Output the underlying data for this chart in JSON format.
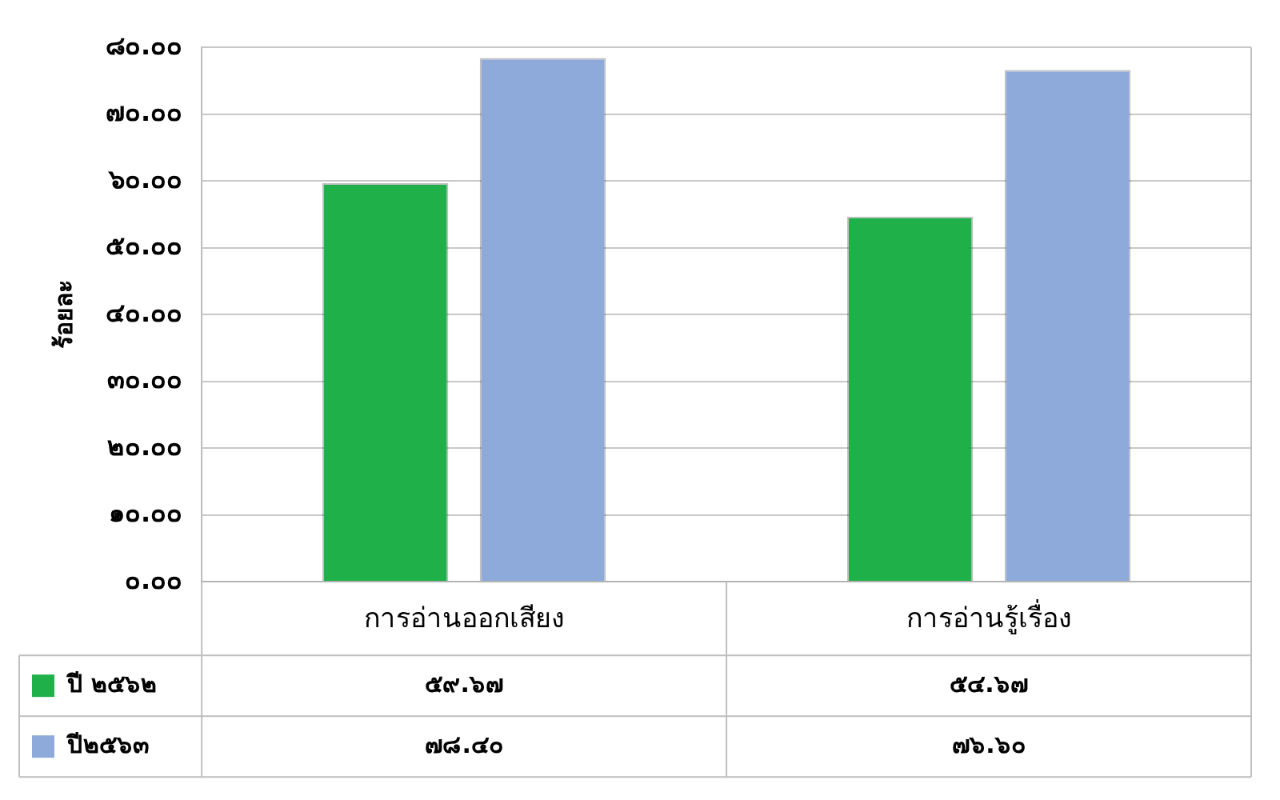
{
  "chart_data": {
    "type": "bar",
    "ylabel": "ร้อยละ",
    "categories": [
      "การอ่านออกเสียง",
      "การอ่านรู้เรื่อง"
    ],
    "series": [
      {
        "name": "ปี ๒๕๖๒",
        "color": "#1fb04a",
        "values": [
          59.67,
          54.67
        ],
        "value_labels": [
          "๕๙.๖๗",
          "๕๔.๖๗"
        ]
      },
      {
        "name": "ปี๒๕๖๓",
        "color": "#8eaadb",
        "values": [
          78.4,
          76.6
        ],
        "value_labels": [
          "๗๘.๔๐",
          "๗๖.๖๐"
        ]
      }
    ],
    "ylim": [
      0,
      80
    ],
    "yticks": [
      {
        "value": 0,
        "label": "๐.๐๐"
      },
      {
        "value": 10,
        "label": "๑๐.๐๐"
      },
      {
        "value": 20,
        "label": "๒๐.๐๐"
      },
      {
        "value": 30,
        "label": "๓๐.๐๐"
      },
      {
        "value": 40,
        "label": "๔๐.๐๐"
      },
      {
        "value": 50,
        "label": "๕๐.๐๐"
      },
      {
        "value": 60,
        "label": "๖๐.๐๐"
      },
      {
        "value": 70,
        "label": "๗๐.๐๐"
      },
      {
        "value": 80,
        "label": "๘๐.๐๐"
      }
    ],
    "grid": "y",
    "legend": "bottom left"
  }
}
